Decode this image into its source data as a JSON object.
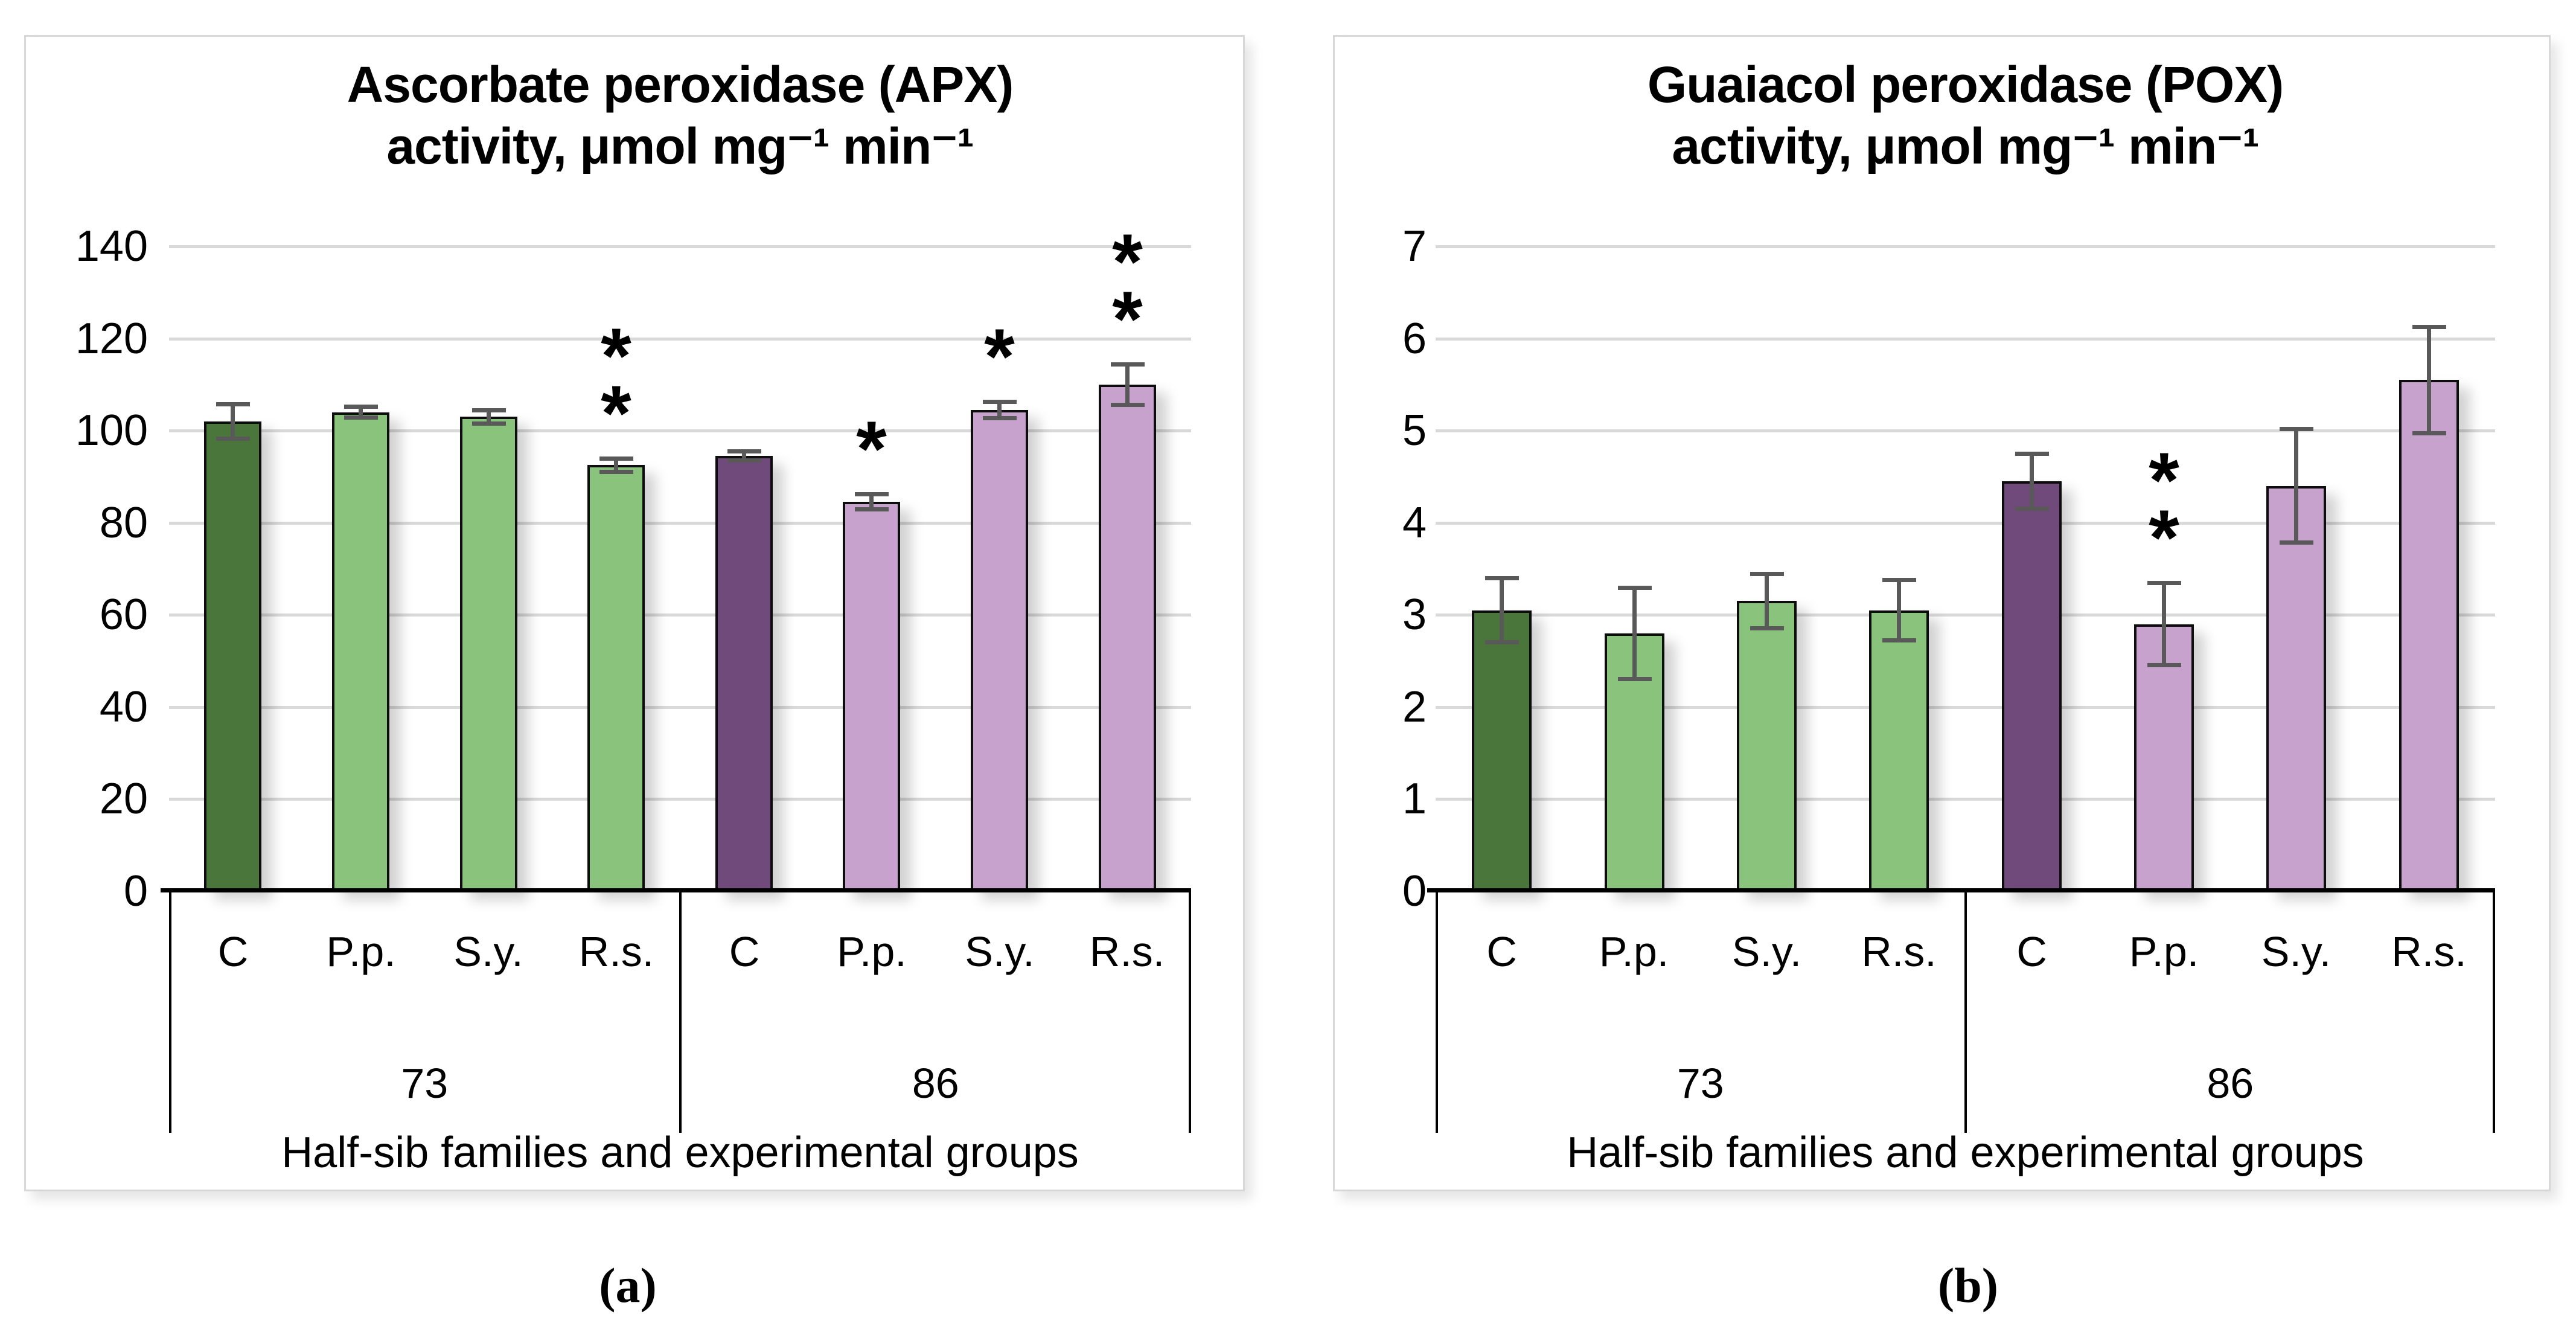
{
  "sublabels": [
    "(a)",
    "(b)"
  ],
  "style": {
    "panel_border_color": "#D8D8D8",
    "gridline_color": "#D9D9D9",
    "axis_line_color": "#000000",
    "bar_border_color": "#0D0D0D",
    "error_bar_color": "#595959",
    "text_color": "#000000",
    "control_73_color": "#4A763C",
    "treatment_73_color": "#8AC47C",
    "control_86_color": "#714A7C",
    "treatment_86_color": "#C7A2CC"
  },
  "chart_data": [
    {
      "type": "bar",
      "title_line1": "Ascorbate peroxidase (APX)",
      "title_line2": "activity, μmol mg⁻¹ min⁻¹",
      "xlabel": "Half-sib families and experimental groups",
      "ylim": [
        0,
        140
      ],
      "yticks": [
        0,
        20,
        40,
        60,
        80,
        100,
        120,
        140
      ],
      "grid": true,
      "legend": "none",
      "groups": [
        {
          "label": "73",
          "categories": [
            "C",
            "P.p.",
            "S.y.",
            "R.s."
          ],
          "values": [
            102,
            104,
            103,
            92.5
          ],
          "errors": [
            3.8,
            1.2,
            1.5,
            1.5
          ],
          "significance": [
            "",
            "",
            "",
            "**"
          ],
          "colors": [
            "#4A763C",
            "#8AC47C",
            "#8AC47C",
            "#8AC47C"
          ]
        },
        {
          "label": "86",
          "categories": [
            "C",
            "P.p.",
            "S.y.",
            "R.s."
          ],
          "values": [
            94.5,
            84.5,
            104.5,
            110
          ],
          "errors": [
            1.0,
            1.7,
            1.8,
            4.5
          ],
          "significance": [
            "",
            "*",
            "*",
            "**"
          ],
          "colors": [
            "#714A7C",
            "#C7A2CC",
            "#C7A2CC",
            "#C7A2CC"
          ]
        }
      ]
    },
    {
      "type": "bar",
      "title_line1": "Guaiacol peroxidase (POX)",
      "title_line2": "activity, μmol mg⁻¹ min⁻¹",
      "xlabel": "Half-sib families and experimental groups",
      "ylim": [
        0,
        7
      ],
      "yticks": [
        0,
        1,
        2,
        3,
        4,
        5,
        6,
        7
      ],
      "grid": true,
      "legend": "none",
      "groups": [
        {
          "label": "73",
          "categories": [
            "C",
            "P.p.",
            "S.y.",
            "R.s."
          ],
          "values": [
            3.05,
            2.8,
            3.15,
            3.05
          ],
          "errors": [
            0.35,
            0.5,
            0.3,
            0.33
          ],
          "significance": [
            "",
            "",
            "",
            ""
          ],
          "colors": [
            "#4A763C",
            "#8AC47C",
            "#8AC47C",
            "#8AC47C"
          ]
        },
        {
          "label": "86",
          "categories": [
            "C",
            "P.p.",
            "S.y.",
            "R.s."
          ],
          "values": [
            4.45,
            2.9,
            4.4,
            5.55
          ],
          "errors": [
            0.3,
            0.45,
            0.62,
            0.58
          ],
          "significance": [
            "",
            "**",
            "",
            ""
          ],
          "colors": [
            "#714A7C",
            "#C7A2CC",
            "#C7A2CC",
            "#C7A2CC"
          ]
        }
      ]
    }
  ]
}
